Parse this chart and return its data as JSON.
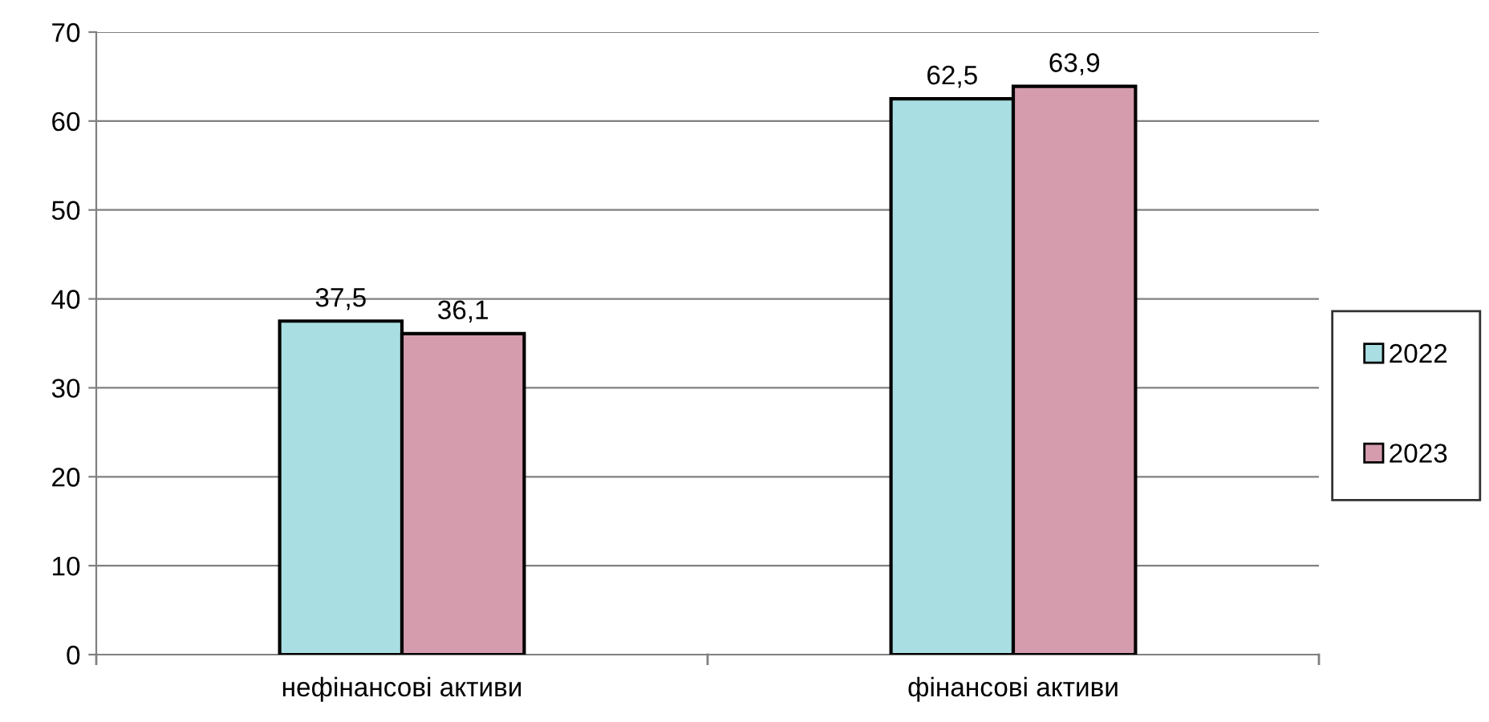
{
  "chart_data": {
    "type": "bar",
    "categories": [
      "нефінансові активи",
      "фінансові активи"
    ],
    "series": [
      {
        "name": "2022",
        "color": "#a9dfe2",
        "values": [
          37.5,
          62.5
        ],
        "value_labels": [
          "37,5",
          "62,5"
        ]
      },
      {
        "name": "2023",
        "color": "#d59cae",
        "values": [
          36.1,
          63.9
        ],
        "value_labels": [
          "36,1",
          "63,9"
        ]
      }
    ],
    "ylim": [
      0,
      70
    ],
    "yticks": [
      0,
      10,
      20,
      30,
      40,
      50,
      60,
      70
    ],
    "grid": "y",
    "legend": "right"
  }
}
